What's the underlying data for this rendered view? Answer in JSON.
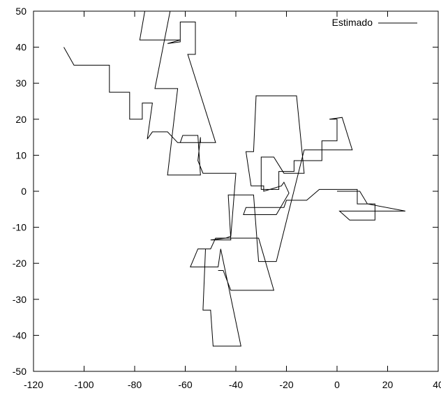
{
  "chart_data": {
    "type": "line",
    "title": "",
    "xlabel": "",
    "ylabel": "",
    "xlim": [
      -120,
      40
    ],
    "ylim": [
      -50,
      50
    ],
    "xticks": [
      "-120",
      "-100",
      "-80",
      "-60",
      "-40",
      "-20",
      "0",
      "20",
      "40"
    ],
    "yticks": [
      "-50",
      "-40",
      "-30",
      "-20",
      "-10",
      "0",
      "10",
      "20",
      "30",
      "40",
      "50"
    ],
    "grid": false,
    "legend_position": "top-right",
    "series": [
      {
        "name": "Estimado",
        "color": "#000000",
        "points": [
          [
            0,
            0
          ],
          [
            9,
            0
          ],
          [
            12,
            -3.5
          ],
          [
            27,
            -5.5
          ],
          [
            1,
            -5.5
          ],
          [
            5,
            -8
          ],
          [
            15,
            -8
          ],
          [
            15,
            -3.5
          ],
          [
            8,
            -3.5
          ],
          [
            8,
            0.5
          ],
          [
            -7,
            0.5
          ],
          [
            -12,
            -2.5
          ],
          [
            -20,
            -2.5
          ],
          [
            -21,
            -4.5
          ],
          [
            -36,
            -4.5
          ],
          [
            -37,
            -6.5
          ],
          [
            -24,
            -6.5
          ],
          [
            -19,
            -0.5
          ],
          [
            -21,
            2.5
          ],
          [
            -22,
            1.5
          ],
          [
            -29,
            0
          ],
          [
            -29,
            1.5
          ],
          [
            -34,
            1.5
          ],
          [
            -36,
            11
          ],
          [
            -33,
            11
          ],
          [
            -32,
            26.5
          ],
          [
            -16,
            26.5
          ],
          [
            -13,
            5
          ],
          [
            -21,
            5
          ],
          [
            -25,
            9.5
          ],
          [
            -30,
            9.5
          ],
          [
            -30,
            0.5
          ],
          [
            -23,
            0.5
          ],
          [
            -23,
            5.5
          ],
          [
            -17,
            5.5
          ],
          [
            -17,
            8.5
          ],
          [
            -6,
            8.5
          ],
          [
            -6,
            14
          ],
          [
            0,
            14
          ],
          [
            0,
            20
          ],
          [
            -3,
            20
          ],
          [
            2,
            20.5
          ],
          [
            6,
            11.5
          ],
          [
            -13,
            11.5
          ],
          [
            -24,
            -19.5
          ],
          [
            -31,
            -19.5
          ],
          [
            -33,
            -1
          ],
          [
            -43,
            -1
          ],
          [
            -42,
            -13.5
          ],
          [
            -48,
            -13.5
          ],
          [
            -50,
            -13.5
          ],
          [
            -44,
            -13
          ],
          [
            -42,
            -12.5
          ],
          [
            -40,
            5
          ],
          [
            -53,
            5
          ],
          [
            -55,
            8.5
          ],
          [
            -54,
            15
          ],
          [
            -54,
            13.5
          ],
          [
            -62,
            13.5
          ],
          [
            -61,
            15.5
          ],
          [
            -55,
            15.5
          ],
          [
            -54,
            4.5
          ],
          [
            -67,
            4.5
          ],
          [
            -63,
            28.5
          ],
          [
            -72,
            28.5
          ],
          [
            -66,
            50
          ],
          [
            -76,
            50
          ],
          [
            -78,
            42
          ],
          [
            -62,
            42
          ],
          [
            -67,
            41
          ],
          [
            -62,
            41.5
          ],
          [
            -62,
            47
          ],
          [
            -56,
            47
          ],
          [
            -56,
            38
          ],
          [
            -59,
            38
          ],
          [
            -48,
            13.5
          ],
          [
            -63,
            13.5
          ],
          [
            -67,
            16.5
          ],
          [
            -73,
            16.5
          ],
          [
            -75,
            14.5
          ],
          [
            -73,
            24.5
          ],
          [
            -77,
            24.5
          ],
          [
            -77,
            20
          ],
          [
            -82,
            20
          ],
          [
            -82,
            27.5
          ],
          [
            -90,
            27.5
          ],
          [
            -90,
            35
          ],
          [
            -104,
            35
          ],
          [
            -108,
            40
          ]
        ]
      },
      {
        "name": "",
        "color": "#000000",
        "points": [
          [
            -47,
            -22
          ],
          [
            -45,
            -22
          ],
          [
            -42,
            -27.5
          ],
          [
            -25,
            -27.5
          ],
          [
            -31,
            -13
          ],
          [
            -48,
            -13
          ],
          [
            -50,
            -16
          ],
          [
            -55,
            -16
          ],
          [
            -58,
            -21
          ],
          [
            -47,
            -21
          ],
          [
            -46,
            -16
          ],
          [
            -38,
            -43
          ],
          [
            -49,
            -43
          ],
          [
            -50,
            -33
          ],
          [
            -53,
            -33
          ],
          [
            -52,
            -16
          ]
        ]
      }
    ]
  }
}
